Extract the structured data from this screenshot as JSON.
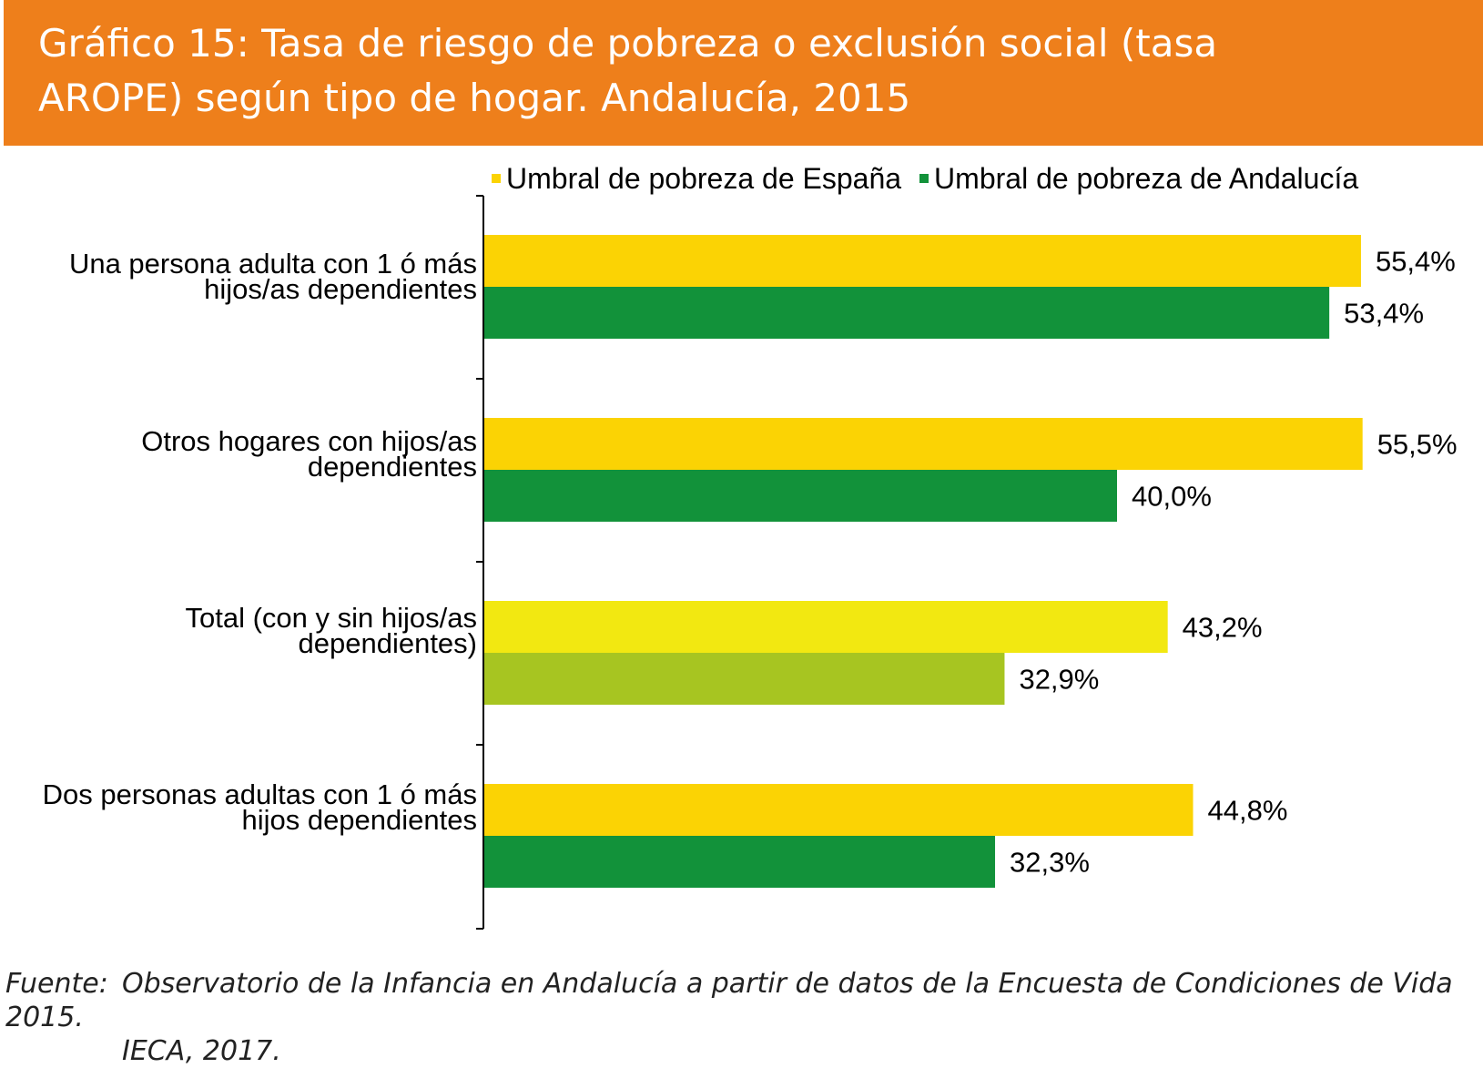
{
  "header": {
    "title_line1": "Gráfico 15: Tasa de riesgo de pobreza o exclusión social (tasa",
    "title_line2": "AROPE) según tipo de hogar. Andalucía, 2015",
    "color": "#ee7f1b"
  },
  "chart_data": {
    "type": "bar",
    "orientation": "horizontal",
    "title": "Gráfico 15: Tasa de riesgo de pobreza o exclusión social (tasa AROPE) según tipo de hogar. Andalucía, 2015",
    "categories": [
      "Una persona adulta con 1 ó más hijos/as dependientes",
      "Otros hogares con hijos/as dependientes",
      "Total (con y sin hijos/as dependientes)",
      "Dos personas adultas con 1 ó más hijos dependientes"
    ],
    "series": [
      {
        "name": "Umbral de pobreza de España",
        "color": "#fbd304",
        "values": [
          55.4,
          55.5,
          43.2,
          44.8
        ],
        "labels": [
          "55,4%",
          "55,5%",
          "43,2%",
          "44,8%"
        ]
      },
      {
        "name": "Umbral de pobreza de Andalucía",
        "color": "#12923a",
        "values": [
          53.4,
          40.0,
          32.9,
          32.3
        ],
        "labels": [
          "53,4%",
          "40,0%",
          "32,9%",
          "32,3%"
        ]
      }
    ],
    "highlight_colors": {
      "total_espana": "#f2e811",
      "total_andalucia": "#a7c521"
    },
    "xlabel": "",
    "ylabel": "",
    "xlim": [
      0,
      60
    ],
    "grid": false,
    "legend_position": "top"
  },
  "source": {
    "label": "Fuente:",
    "text": "Observatorio de la Infancia en Andalucía a partir de datos de la Encuesta de Condiciones de Vida 2015.",
    "text2": "IECA, 2017."
  }
}
